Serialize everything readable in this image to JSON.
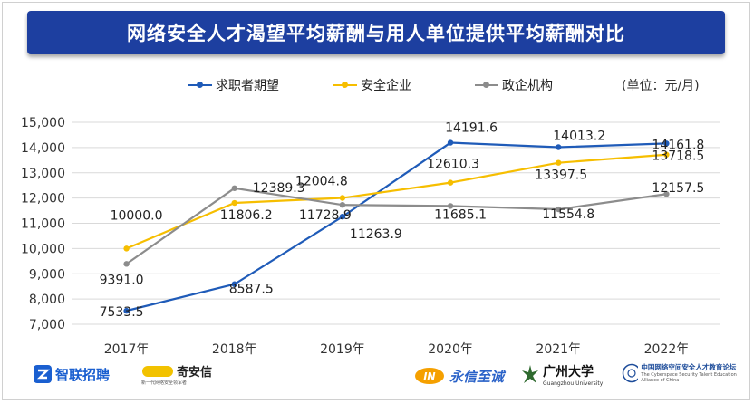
{
  "header": {
    "title": "网络安全人才渴望平均薪酬与用人单位提供平均薪酬对比"
  },
  "unit_label": "(单位：元/月)",
  "chart_data": {
    "type": "line",
    "title": "网络安全人才渴望平均薪酬与用人单位提供平均薪酬对比",
    "categories": [
      "2017年",
      "2018年",
      "2019年",
      "2020年",
      "2021年",
      "2022年"
    ],
    "ylim": [
      7000,
      15000
    ],
    "yticks": [
      "7,000",
      "8,000",
      "9,000",
      "10,000",
      "11,000",
      "12,000",
      "13,000",
      "14,000",
      "15,000"
    ],
    "grid": true,
    "legend_position": "top",
    "series": [
      {
        "name": "求职者期望",
        "color": "#1f5bb8",
        "values": [
          7533.5,
          8587.5,
          11263.9,
          14191.6,
          14013.2,
          14161.8
        ],
        "labels": [
          "7533.5",
          "8587.5",
          "11263.9",
          "14191.6",
          "14013.2",
          "14161.8"
        ]
      },
      {
        "name": "安全企业",
        "color": "#f6be00",
        "values": [
          10000.0,
          11806.2,
          12004.8,
          12610.3,
          13397.5,
          13718.5
        ],
        "labels": [
          "10000.0",
          "11806.2",
          "12004.8",
          "12610.3",
          "13397.5",
          "13718.5"
        ]
      },
      {
        "name": "政企机构",
        "color": "#8c8c8c",
        "values": [
          9391.0,
          12389.3,
          11728.9,
          11685.1,
          11554.8,
          12157.5
        ],
        "labels": [
          "9391.0",
          "12389.3",
          "11728.9",
          "11685.1",
          "11554.8",
          "12157.5"
        ]
      }
    ]
  },
  "logos": {
    "zhilian": "智联招聘",
    "qianxin": "奇安信",
    "qianxin_sub": "新一代网络安全领军者",
    "yongxin": "永信至诚",
    "gzu": "广州大学",
    "gzu_sub": "Guangzhou University",
    "alliance": "中国网络空间安全人才教育论坛",
    "alliance_sub": "The Cyberspace Security Talent Education Alliance of China"
  }
}
